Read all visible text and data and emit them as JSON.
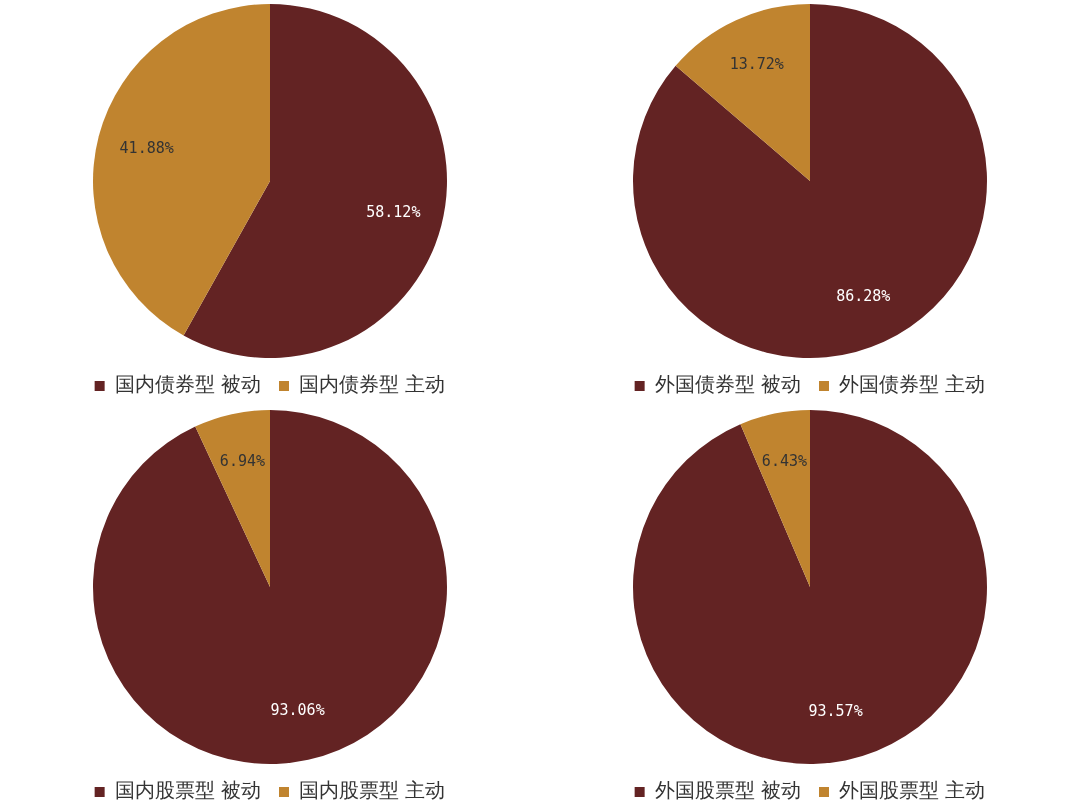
{
  "chart_data": [
    {
      "type": "pie",
      "categories": [
        "国内债券型 被动",
        "国内债券型 主动"
      ],
      "values": [
        58.12,
        41.88
      ],
      "colors": [
        "#632323",
        "#c0842f"
      ],
      "value_labels": [
        "58.12%",
        "41.88%"
      ],
      "legend": "bottom"
    },
    {
      "type": "pie",
      "categories": [
        "外国债券型 被动",
        "外国债券型 主动"
      ],
      "values": [
        86.28,
        13.72
      ],
      "colors": [
        "#632323",
        "#c0842f"
      ],
      "value_labels": [
        "86.28%",
        "13.72%"
      ],
      "legend": "bottom"
    },
    {
      "type": "pie",
      "categories": [
        "国内股票型 被动",
        "国内股票型 主动"
      ],
      "values": [
        93.06,
        6.94
      ],
      "colors": [
        "#632323",
        "#c0842f"
      ],
      "value_labels": [
        "93.06%",
        "6.94%"
      ],
      "legend": "bottom"
    },
    {
      "type": "pie",
      "categories": [
        "外国股票型 被动",
        "外国股票型 主动"
      ],
      "values": [
        93.57,
        6.43
      ],
      "colors": [
        "#632323",
        "#c0842f"
      ],
      "value_labels": [
        "93.57%",
        "6.43%"
      ],
      "legend": "bottom"
    }
  ]
}
